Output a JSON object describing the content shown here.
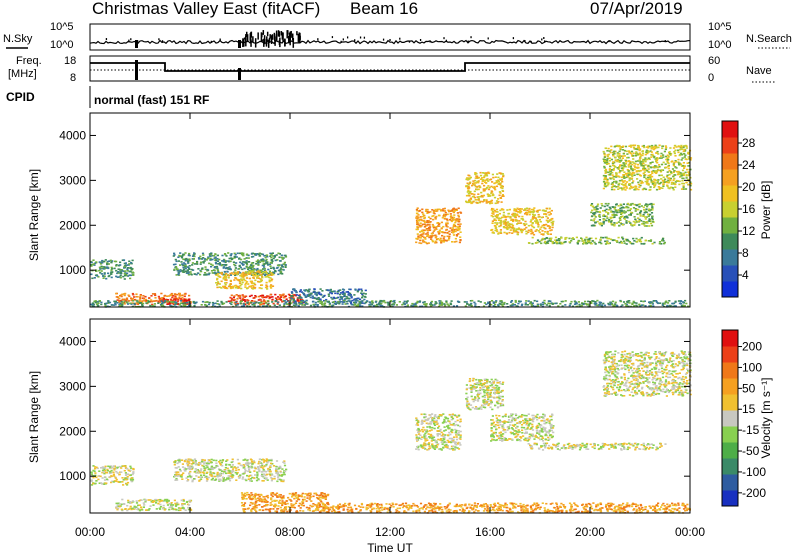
{
  "header": {
    "station": "Christmas Valley East (fitACF)",
    "beam": "Beam 16",
    "date": "07/Apr/2019"
  },
  "status_strip": {
    "left_label": "N.Sky",
    "left_ticks": [
      "10^5",
      "10^0"
    ],
    "right_label": "N.Search",
    "right_ticks": [
      "10^5",
      "10^0"
    ]
  },
  "freq_strip": {
    "left_label_1": "Freq.",
    "left_label_2": "[MHz]",
    "left_ticks": [
      "18",
      "8"
    ],
    "right_label": "Nave",
    "right_ticks": [
      "60",
      "0"
    ]
  },
  "cpid": {
    "label": "CPID",
    "mode": "normal (fast) 151 RF"
  },
  "x_axis": {
    "label": "Time UT",
    "ticks": [
      "00:00",
      "04:00",
      "08:00",
      "12:00",
      "16:00",
      "20:00",
      "00:00"
    ]
  },
  "chart_data": [
    {
      "type": "heatmap",
      "panel": "power",
      "ylabel": "Slant Range [km]",
      "yticks": [
        "1000",
        "2000",
        "3000",
        "4000"
      ],
      "ylim": [
        180,
        4500
      ],
      "xlim": [
        0,
        24
      ],
      "colorbar": {
        "label": "Power [dB]",
        "ticks": [
          "4",
          "8",
          "12",
          "16",
          "20",
          "24",
          "28"
        ],
        "colors": [
          "#1030d8",
          "#2850b8",
          "#3a7a9a",
          "#3e8a5a",
          "#70b040",
          "#c8d030",
          "#f0c020",
          "#f5a020",
          "#f07818",
          "#ec4018",
          "#e01010"
        ]
      },
      "clusters": [
        {
          "t0": 0.0,
          "t1": 1.7,
          "r0": 820,
          "r1": 1250,
          "level": 3
        },
        {
          "t0": 1.0,
          "t1": 4.0,
          "r0": 250,
          "r1": 500,
          "level": 8
        },
        {
          "t0": 2.8,
          "t1": 4.0,
          "r0": 250,
          "r1": 420,
          "level": 10
        },
        {
          "t0": 3.3,
          "t1": 7.8,
          "r0": 900,
          "r1": 1400,
          "level": 3
        },
        {
          "t0": 5.0,
          "t1": 7.3,
          "r0": 600,
          "r1": 1000,
          "level": 6
        },
        {
          "t0": 5.5,
          "t1": 8.5,
          "r0": 250,
          "r1": 480,
          "level": 9
        },
        {
          "t0": 8.0,
          "t1": 11.0,
          "r0": 280,
          "r1": 600,
          "level": 2
        },
        {
          "t0": 13.0,
          "t1": 14.8,
          "r0": 1600,
          "r1": 2400,
          "level": 7
        },
        {
          "t0": 15.0,
          "t1": 16.5,
          "r0": 2500,
          "r1": 3200,
          "level": 6
        },
        {
          "t0": 16.0,
          "t1": 18.5,
          "r0": 1800,
          "r1": 2400,
          "level": 6
        },
        {
          "t0": 17.5,
          "t1": 23.0,
          "r0": 1600,
          "r1": 1750,
          "level": 4
        },
        {
          "t0": 20.0,
          "t1": 22.5,
          "r0": 2000,
          "r1": 2500,
          "level": 4
        },
        {
          "t0": 20.5,
          "t1": 24.0,
          "r0": 2800,
          "r1": 3800,
          "level": 5
        },
        {
          "t0": 0.0,
          "t1": 24.0,
          "r0": 200,
          "r1": 340,
          "level": 3
        }
      ]
    },
    {
      "type": "heatmap",
      "panel": "velocity",
      "ylabel": "Slant Range [km]",
      "yticks": [
        "1000",
        "2000",
        "3000",
        "4000"
      ],
      "ylim": [
        180,
        4500
      ],
      "xlim": [
        0,
        24
      ],
      "colorbar": {
        "label": "Velocity [m s⁻¹]",
        "ticks": [
          "200",
          "100",
          "50",
          "15",
          "-15",
          "-50",
          "-100",
          "-200"
        ],
        "colors": [
          "#1830c0",
          "#2e5ca0",
          "#3a8a68",
          "#4eae48",
          "#88d050",
          "#c8c8c0",
          "#f0c030",
          "#f5a020",
          "#f07818",
          "#ec4018",
          "#e01010"
        ]
      },
      "clusters": [
        {
          "t0": 0.0,
          "t1": 1.7,
          "r0": 820,
          "r1": 1250,
          "level": 5
        },
        {
          "t0": 1.0,
          "t1": 4.0,
          "r0": 250,
          "r1": 500,
          "level": 5
        },
        {
          "t0": 3.3,
          "t1": 7.8,
          "r0": 900,
          "r1": 1400,
          "level": 5
        },
        {
          "t0": 6.0,
          "t1": 9.5,
          "r0": 220,
          "r1": 650,
          "level": 7
        },
        {
          "t0": 9.0,
          "t1": 24.0,
          "r0": 200,
          "r1": 420,
          "level": 7
        },
        {
          "t0": 13.0,
          "t1": 14.8,
          "r0": 1600,
          "r1": 2400,
          "level": 5
        },
        {
          "t0": 15.0,
          "t1": 16.5,
          "r0": 2500,
          "r1": 3200,
          "level": 5
        },
        {
          "t0": 16.0,
          "t1": 18.5,
          "r0": 1800,
          "r1": 2400,
          "level": 5
        },
        {
          "t0": 17.5,
          "t1": 23.0,
          "r0": 1600,
          "r1": 1750,
          "level": 5
        },
        {
          "t0": 20.5,
          "t1": 24.0,
          "r0": 2800,
          "r1": 3800,
          "level": 5
        }
      ]
    }
  ]
}
